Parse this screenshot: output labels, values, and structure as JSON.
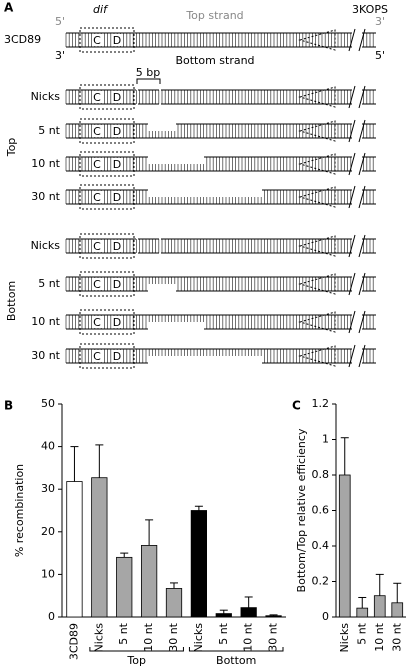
{
  "panel_a": {
    "label": "A",
    "dif": "dif",
    "top_strand": "Top strand",
    "kops": "3KOPS",
    "construct": "3CD89",
    "ends": [
      "5'",
      "3'",
      "3'",
      "5'"
    ],
    "bottom_strand": "Bottom strand",
    "sites": [
      "C",
      "D"
    ],
    "scale": "5 bp",
    "groups": [
      {
        "label": "Top",
        "rows": [
          "Nicks",
          "5 nt",
          "10 nt",
          "30 nt"
        ]
      },
      {
        "label": "Bottom",
        "rows": [
          "Nicks",
          "5 nt",
          "10 nt",
          "30 nt"
        ]
      }
    ]
  },
  "chart_data": [
    {
      "type": "bar",
      "panel": "B",
      "ylabel": "% recombination",
      "groups": [
        {
          "label": null,
          "categories": [
            "3CD89"
          ]
        },
        {
          "label": "Top",
          "categories": [
            "Nicks",
            "5 nt",
            "10 nt",
            "30 nt"
          ]
        },
        {
          "label": "Bottom",
          "categories": [
            "Nicks",
            "5 nt",
            "10 nt",
            "30 nt"
          ]
        }
      ],
      "values": [
        31.8,
        32.7,
        14,
        16.8,
        6.7,
        25,
        0.8,
        2.2,
        0.3
      ],
      "errors": [
        8.2,
        7.7,
        1,
        6,
        1.3,
        1,
        0.8,
        2.5,
        0.2
      ],
      "colors": [
        "#ffffff",
        "#a6a6a6",
        "#a6a6a6",
        "#a6a6a6",
        "#a6a6a6",
        "#000000",
        "#000000",
        "#000000",
        "#000000"
      ],
      "ylim": [
        0,
        50
      ],
      "yticks": [
        0,
        10,
        20,
        30,
        40,
        50
      ]
    },
    {
      "type": "bar",
      "panel": "C",
      "ylabel": "Bottom/Top relative efficiency",
      "categories": [
        "Nicks",
        "5 nt",
        "10 nt",
        "30 nt"
      ],
      "values": [
        0.8,
        0.05,
        0.12,
        0.08
      ],
      "errors": [
        0.21,
        0.06,
        0.12,
        0.11
      ],
      "colors": [
        "#a6a6a6",
        "#a6a6a6",
        "#a6a6a6",
        "#a6a6a6"
      ],
      "ylim": [
        0,
        1.2
      ],
      "yticks": [
        0,
        0.2,
        0.4,
        0.6,
        0.8,
        1,
        1.2
      ]
    }
  ]
}
